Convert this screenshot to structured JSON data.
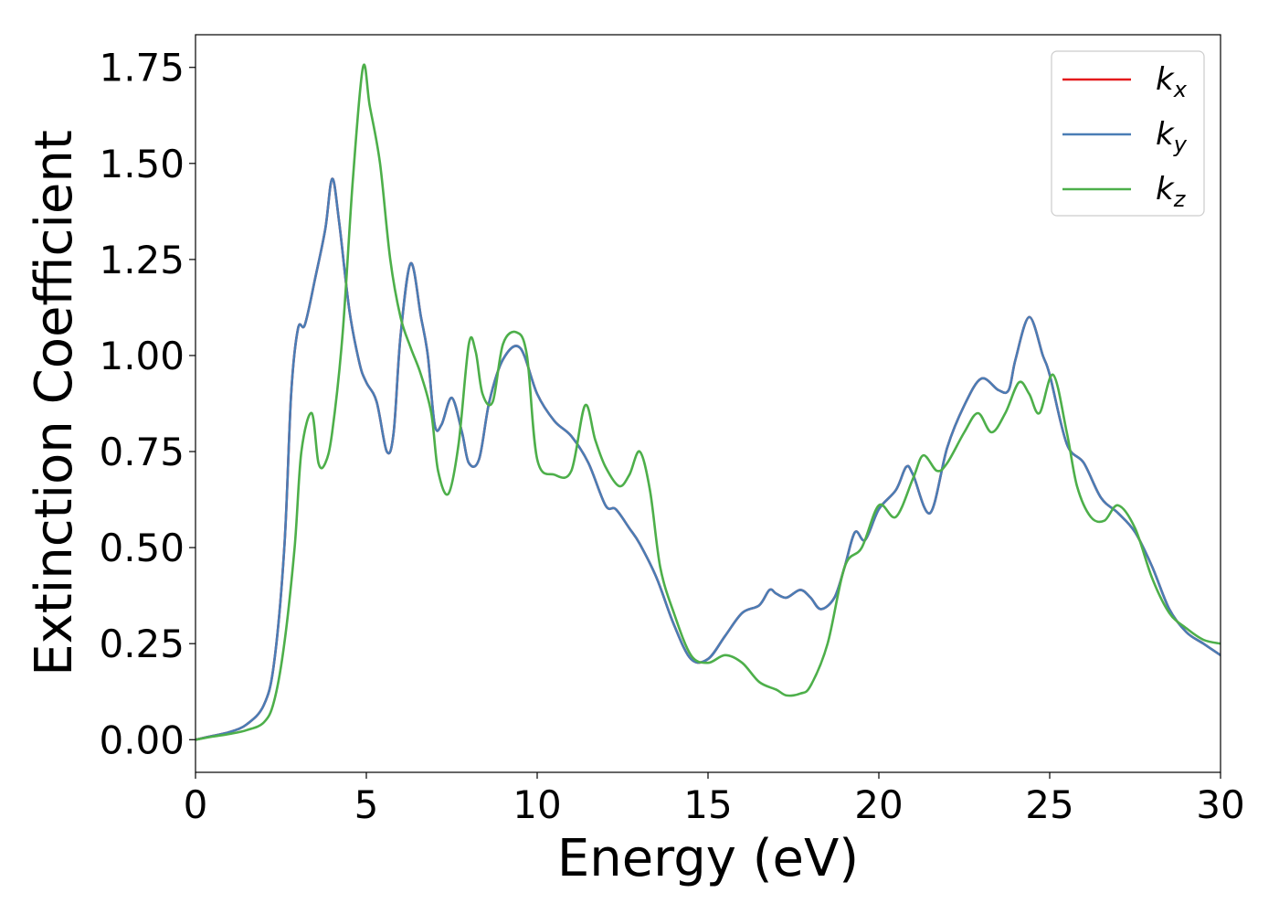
{
  "chart_data": {
    "type": "line",
    "title": "",
    "xlabel": "Energy (eV)",
    "ylabel": "Extinction Coefficient",
    "xlim": [
      0,
      30
    ],
    "ylim": [
      -0.085,
      1.835
    ],
    "xticks": [
      0,
      5,
      10,
      15,
      20,
      25,
      30
    ],
    "xtick_labels": [
      "0",
      "5",
      "10",
      "15",
      "20",
      "25",
      "30"
    ],
    "yticks": [
      0,
      0.25,
      0.5,
      0.75,
      1.0,
      1.25,
      1.5,
      1.75
    ],
    "ytick_labels": [
      "0.00",
      "0.25",
      "0.50",
      "0.75",
      "1.00",
      "1.25",
      "1.50",
      "1.75"
    ],
    "grid": false,
    "legend": "top-right",
    "series": [
      {
        "name": "k_x",
        "label_main": "k",
        "label_sub": "x",
        "color": "#e41a1c",
        "x": [
          0,
          0.5,
          1,
          1.5,
          2,
          2.3,
          2.6,
          2.8,
          3.0,
          3.2,
          3.5,
          3.8,
          4.0,
          4.2,
          4.5,
          4.8,
          5.0,
          5.3,
          5.6,
          5.8,
          6.0,
          6.3,
          6.6,
          6.8,
          7.0,
          7.2,
          7.5,
          7.8,
          8.0,
          8.3,
          8.6,
          9.0,
          9.5,
          10.0,
          10.5,
          11.0,
          11.5,
          12.0,
          12.3,
          12.7,
          13.0,
          13.5,
          14.0,
          14.5,
          15.0,
          15.5,
          16.0,
          16.5,
          16.8,
          17.0,
          17.3,
          17.7,
          18.0,
          18.3,
          18.7,
          19.0,
          19.3,
          19.6,
          20.0,
          20.5,
          20.8,
          21.0,
          21.5,
          22.0,
          22.5,
          23.0,
          23.5,
          23.8,
          24.0,
          24.4,
          24.8,
          25.0,
          25.5,
          26.0,
          26.5,
          27.0,
          27.5,
          28.0,
          28.5,
          29.0,
          29.5,
          30.0
        ],
        "y": [
          0.0,
          0.01,
          0.02,
          0.04,
          0.09,
          0.2,
          0.5,
          0.9,
          1.07,
          1.08,
          1.2,
          1.33,
          1.46,
          1.35,
          1.12,
          0.98,
          0.93,
          0.88,
          0.75,
          0.8,
          1.05,
          1.24,
          1.1,
          1.0,
          0.82,
          0.82,
          0.89,
          0.8,
          0.72,
          0.73,
          0.88,
          0.99,
          1.02,
          0.9,
          0.83,
          0.79,
          0.72,
          0.61,
          0.6,
          0.55,
          0.51,
          0.42,
          0.3,
          0.21,
          0.21,
          0.27,
          0.33,
          0.35,
          0.39,
          0.38,
          0.37,
          0.39,
          0.37,
          0.34,
          0.37,
          0.45,
          0.54,
          0.52,
          0.6,
          0.65,
          0.71,
          0.69,
          0.59,
          0.76,
          0.87,
          0.94,
          0.91,
          0.91,
          0.99,
          1.1,
          1.0,
          0.95,
          0.77,
          0.72,
          0.63,
          0.59,
          0.54,
          0.45,
          0.34,
          0.28,
          0.25,
          0.22
        ]
      },
      {
        "name": "k_y",
        "label_main": "k",
        "label_sub": "y",
        "color": "#4a7db5",
        "x": [
          0,
          0.5,
          1,
          1.5,
          2,
          2.3,
          2.6,
          2.8,
          3.0,
          3.2,
          3.5,
          3.8,
          4.0,
          4.2,
          4.5,
          4.8,
          5.0,
          5.3,
          5.6,
          5.8,
          6.0,
          6.3,
          6.6,
          6.8,
          7.0,
          7.2,
          7.5,
          7.8,
          8.0,
          8.3,
          8.6,
          9.0,
          9.5,
          10.0,
          10.5,
          11.0,
          11.5,
          12.0,
          12.3,
          12.7,
          13.0,
          13.5,
          14.0,
          14.5,
          15.0,
          15.5,
          16.0,
          16.5,
          16.8,
          17.0,
          17.3,
          17.7,
          18.0,
          18.3,
          18.7,
          19.0,
          19.3,
          19.6,
          20.0,
          20.5,
          20.8,
          21.0,
          21.5,
          22.0,
          22.5,
          23.0,
          23.5,
          23.8,
          24.0,
          24.4,
          24.8,
          25.0,
          25.5,
          26.0,
          26.5,
          27.0,
          27.5,
          28.0,
          28.5,
          29.0,
          29.5,
          30.0
        ],
        "y": [
          0.0,
          0.01,
          0.02,
          0.04,
          0.09,
          0.2,
          0.5,
          0.9,
          1.07,
          1.08,
          1.2,
          1.33,
          1.46,
          1.35,
          1.12,
          0.98,
          0.93,
          0.88,
          0.75,
          0.8,
          1.05,
          1.24,
          1.1,
          1.0,
          0.82,
          0.82,
          0.89,
          0.8,
          0.72,
          0.73,
          0.88,
          0.99,
          1.02,
          0.9,
          0.83,
          0.79,
          0.72,
          0.61,
          0.6,
          0.55,
          0.51,
          0.42,
          0.3,
          0.21,
          0.21,
          0.27,
          0.33,
          0.35,
          0.39,
          0.38,
          0.37,
          0.39,
          0.37,
          0.34,
          0.37,
          0.45,
          0.54,
          0.52,
          0.6,
          0.65,
          0.71,
          0.69,
          0.59,
          0.76,
          0.87,
          0.94,
          0.91,
          0.91,
          0.99,
          1.1,
          1.0,
          0.95,
          0.77,
          0.72,
          0.63,
          0.59,
          0.54,
          0.45,
          0.34,
          0.28,
          0.25,
          0.22
        ]
      },
      {
        "name": "k_z",
        "label_main": "k",
        "label_sub": "z",
        "color": "#4daf4a",
        "x": [
          0,
          0.5,
          1,
          1.5,
          2,
          2.3,
          2.6,
          2.9,
          3.1,
          3.4,
          3.6,
          3.8,
          4.0,
          4.3,
          4.6,
          4.9,
          5.1,
          5.4,
          5.7,
          6.0,
          6.3,
          6.6,
          6.9,
          7.1,
          7.4,
          7.7,
          8.0,
          8.2,
          8.4,
          8.7,
          9.0,
          9.4,
          9.7,
          10.0,
          10.5,
          11.0,
          11.4,
          11.7,
          12.0,
          12.4,
          12.7,
          13.0,
          13.3,
          13.6,
          14.0,
          14.5,
          15.0,
          15.5,
          16.0,
          16.5,
          17.0,
          17.3,
          17.7,
          18.0,
          18.5,
          19.0,
          19.5,
          20.0,
          20.5,
          21.0,
          21.3,
          21.7,
          22.0,
          22.5,
          22.9,
          23.3,
          23.7,
          24.1,
          24.4,
          24.7,
          25.1,
          25.5,
          25.8,
          26.2,
          26.6,
          27.0,
          27.5,
          28.0,
          28.5,
          29.0,
          29.5,
          30.0
        ],
        "y": [
          0.0,
          0.008,
          0.015,
          0.025,
          0.045,
          0.1,
          0.25,
          0.5,
          0.75,
          0.85,
          0.72,
          0.72,
          0.8,
          1.05,
          1.45,
          1.75,
          1.65,
          1.5,
          1.25,
          1.1,
          1.02,
          0.95,
          0.85,
          0.7,
          0.64,
          0.77,
          1.03,
          1.01,
          0.9,
          0.88,
          1.03,
          1.06,
          1.0,
          0.73,
          0.69,
          0.7,
          0.87,
          0.78,
          0.71,
          0.66,
          0.69,
          0.75,
          0.65,
          0.45,
          0.33,
          0.22,
          0.2,
          0.22,
          0.2,
          0.15,
          0.13,
          0.115,
          0.12,
          0.14,
          0.25,
          0.45,
          0.5,
          0.61,
          0.58,
          0.68,
          0.74,
          0.7,
          0.72,
          0.8,
          0.85,
          0.8,
          0.85,
          0.93,
          0.9,
          0.85,
          0.95,
          0.8,
          0.66,
          0.58,
          0.57,
          0.61,
          0.55,
          0.42,
          0.33,
          0.29,
          0.26,
          0.25
        ]
      }
    ]
  }
}
